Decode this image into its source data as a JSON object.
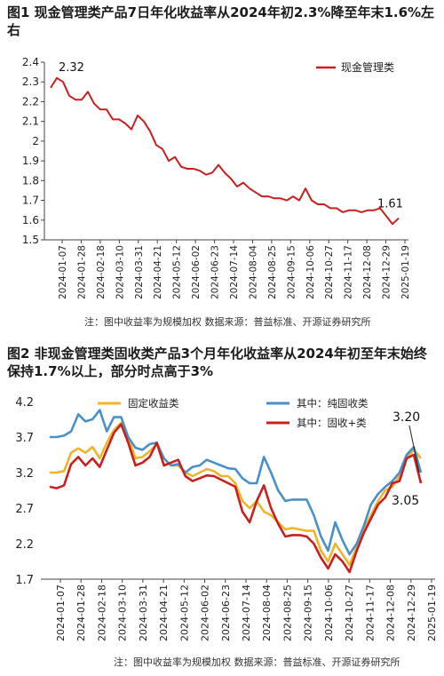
{
  "figure1": {
    "title": "图1  现金管理类产品7日年化收益率从2024年初2.3%降至年末1.6%左右",
    "note": "注：图中收益率为规模加权    数据来源：普益标准、开源证券研究所"
  },
  "figure2": {
    "title": "图2  非现金管理类固收类产品3个月年化收益率从2024年初至年末始终保持1.7%以上，部分时点高于3%",
    "note": "注：图中收益率为规模加权    数据来源：普益标准、开源证券研究所"
  },
  "chart_data": [
    {
      "type": "line",
      "title": "",
      "xlabel": "",
      "ylabel": "",
      "ylim": [
        1.5,
        2.4
      ],
      "yticks": [
        1.5,
        1.6,
        1.7,
        1.8,
        1.9,
        2,
        2.1,
        2.2,
        2.3,
        2.4
      ],
      "x_tick_labels": [
        "2024-01-07",
        "2024-01-28",
        "2024-02-18",
        "2024-03-10",
        "2024-03-31",
        "2024-04-21",
        "2024-05-12",
        "2024-06-02",
        "2024-06-23",
        "2024-07-14",
        "2024-08-04",
        "2024-08-25",
        "2024-09-15",
        "2024-10-06",
        "2024-10-27",
        "2024-11-17",
        "2024-12-08",
        "2024-12-29",
        "2025-01-19"
      ],
      "legend_position": "top-right",
      "annotations": [
        "2.32",
        "1.61"
      ],
      "series": [
        {
          "name": "现金管理类",
          "color": "#c8201e",
          "values": [
            2.27,
            2.32,
            2.3,
            2.23,
            2.21,
            2.21,
            2.25,
            2.19,
            2.16,
            2.16,
            2.11,
            2.11,
            2.09,
            2.06,
            2.13,
            2.1,
            2.05,
            1.98,
            1.96,
            1.9,
            1.92,
            1.87,
            1.86,
            1.86,
            1.85,
            1.83,
            1.84,
            1.88,
            1.84,
            1.81,
            1.77,
            1.79,
            1.76,
            1.74,
            1.72,
            1.72,
            1.71,
            1.71,
            1.7,
            1.72,
            1.7,
            1.76,
            1.7,
            1.68,
            1.68,
            1.66,
            1.66,
            1.64,
            1.65,
            1.65,
            1.64,
            1.65,
            1.65,
            1.66,
            1.62,
            1.58,
            1.61
          ]
        }
      ]
    },
    {
      "type": "line",
      "title": "",
      "xlabel": "",
      "ylabel": "",
      "ylim": [
        1.7,
        4.2
      ],
      "yticks": [
        1.7,
        2.2,
        2.7,
        3.2,
        3.7,
        4.2
      ],
      "x_tick_labels": [
        "2024-01-07",
        "2024-01-28",
        "2024-02-18",
        "2024-03-10",
        "2024-03-31",
        "2024-04-21",
        "2024-05-12",
        "2024-06-02",
        "2024-06-23",
        "2024-07-14",
        "2024-08-04",
        "2024-08-25",
        "2024-09-15",
        "2024-10-06",
        "2024-10-27",
        "2024-11-17",
        "2024-12-08",
        "2024-12-29",
        "2025-01-19"
      ],
      "legend_position": "top",
      "annotations": [
        "3.20",
        "3.05"
      ],
      "series": [
        {
          "name": "固定收益类",
          "color": "#f0b429",
          "values": [
            3.2,
            3.2,
            3.22,
            3.48,
            3.54,
            3.48,
            3.56,
            3.4,
            3.62,
            3.8,
            3.9,
            3.7,
            3.4,
            3.42,
            3.5,
            3.6,
            3.4,
            3.3,
            3.3,
            3.2,
            3.15,
            3.2,
            3.25,
            3.22,
            3.15,
            3.15,
            3.05,
            2.8,
            2.7,
            2.8,
            2.65,
            2.6,
            2.5,
            2.4,
            2.42,
            2.4,
            2.38,
            2.38,
            2.1,
            1.95,
            2.2,
            2.05,
            1.9,
            2.15,
            2.4,
            2.6,
            2.8,
            2.95,
            3.0,
            3.15,
            3.4,
            3.52,
            3.4
          ]
        },
        {
          "name": "其中：纯固收类",
          "color": "#4a90c8",
          "values": [
            3.7,
            3.7,
            3.72,
            3.78,
            4.02,
            3.92,
            3.95,
            4.08,
            3.78,
            3.98,
            3.98,
            3.7,
            3.55,
            3.52,
            3.6,
            3.62,
            3.4,
            3.3,
            3.32,
            3.2,
            3.28,
            3.3,
            3.38,
            3.34,
            3.3,
            3.26,
            3.25,
            3.12,
            3.05,
            3.05,
            3.42,
            3.2,
            2.95,
            2.8,
            2.82,
            2.82,
            2.82,
            2.6,
            2.3,
            2.1,
            2.5,
            2.25,
            2.05,
            2.2,
            2.45,
            2.75,
            2.9,
            3.0,
            3.08,
            3.2,
            3.45,
            3.56,
            3.2
          ]
        },
        {
          "name": "其中：固收+类",
          "color": "#c8201e",
          "values": [
            3.0,
            2.98,
            3.02,
            3.32,
            3.42,
            3.3,
            3.4,
            3.28,
            3.52,
            3.76,
            3.88,
            3.62,
            3.3,
            3.34,
            3.42,
            3.62,
            3.3,
            3.34,
            3.38,
            3.15,
            3.08,
            3.12,
            3.16,
            3.15,
            3.1,
            3.05,
            3.0,
            2.65,
            2.5,
            2.8,
            3.02,
            2.7,
            2.48,
            2.3,
            2.32,
            2.32,
            2.3,
            2.2,
            2.0,
            1.85,
            2.05,
            1.95,
            1.8,
            2.1,
            2.35,
            2.55,
            2.75,
            2.85,
            3.05,
            3.08,
            3.4,
            3.45,
            3.05
          ]
        }
      ]
    }
  ]
}
